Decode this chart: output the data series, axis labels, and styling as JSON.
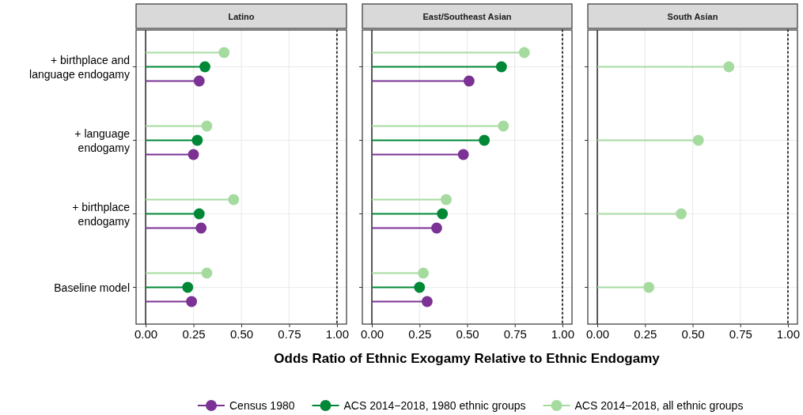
{
  "chart_data": [
    {
      "type": "lollipop",
      "title": "Latino",
      "orientation": "horizontal",
      "categories": [
        "+ birthplace and\nlanguage endogamy",
        "+ language\nendogamy",
        "+ birthplace\nendogamy",
        "Baseline model"
      ],
      "xlim": [
        -0.05,
        1.05
      ],
      "xticks": [
        {
          "value": 0,
          "label": "0.00"
        },
        {
          "value": 0.25,
          "label": "0.25"
        },
        {
          "value": 0.5,
          "label": "0.50"
        },
        {
          "value": 0.75,
          "label": "0.75"
        },
        {
          "value": 1,
          "label": "1.00"
        }
      ],
      "grid": true,
      "marker": "circle",
      "legend": "bottom",
      "ref_lines": [
        {
          "axis": "x",
          "value": 0,
          "color": "#333333",
          "line_style": "solid"
        },
        {
          "axis": "x",
          "value": 1,
          "color": "#333333",
          "line_style": "dotted"
        }
      ],
      "series": [
        {
          "name": "Census 1980",
          "color": "#7b3294",
          "values": [
            0.28,
            0.25,
            0.29,
            0.24
          ]
        },
        {
          "name": "ACS 2014−2018, 1980 ethnic groups",
          "color": "#008837",
          "values": [
            0.31,
            0.27,
            0.28,
            0.22
          ]
        },
        {
          "name": "ACS 2014−2018, all ethnic groups",
          "color": "#a6dba0",
          "values": [
            0.41,
            0.32,
            0.46,
            0.32
          ]
        }
      ]
    },
    {
      "type": "lollipop",
      "title": "East/Southeast Asian",
      "xlabel": "Odds Ratio of Ethnic Exogamy Relative to Ethnic Endogamy",
      "orientation": "horizontal",
      "categories": [
        "+ birthplace and\nlanguage endogamy",
        "+ language\nendogamy",
        "+ birthplace\nendogamy",
        "Baseline model"
      ],
      "xlim": [
        -0.05,
        1.05
      ],
      "xticks": [
        {
          "value": 0,
          "label": "0.00"
        },
        {
          "value": 0.25,
          "label": "0.25"
        },
        {
          "value": 0.5,
          "label": "0.50"
        },
        {
          "value": 0.75,
          "label": "0.75"
        },
        {
          "value": 1,
          "label": "1.00"
        }
      ],
      "grid": true,
      "marker": "circle",
      "tick_labels": "x",
      "ref_lines": [
        {
          "axis": "x",
          "value": 0,
          "color": "#333333",
          "line_style": "solid"
        },
        {
          "axis": "x",
          "value": 1,
          "color": "#333333",
          "line_style": "dotted"
        }
      ],
      "series": [
        {
          "name": "Census 1980",
          "color": "#7b3294",
          "values": [
            0.51,
            0.48,
            0.34,
            0.29
          ]
        },
        {
          "name": "ACS 2014−2018, 1980 ethnic groups",
          "color": "#008837",
          "values": [
            0.68,
            0.59,
            0.37,
            0.25
          ]
        },
        {
          "name": "ACS 2014−2018, all ethnic groups",
          "color": "#a6dba0",
          "values": [
            0.8,
            0.69,
            0.39,
            0.27
          ]
        }
      ]
    },
    {
      "type": "lollipop",
      "title": "South Asian",
      "orientation": "horizontal",
      "categories": [
        "+ birthplace and\nlanguage endogamy",
        "+ language\nendogamy",
        "+ birthplace\nendogamy",
        "Baseline model"
      ],
      "xlim": [
        -0.05,
        1.05
      ],
      "xticks": [
        {
          "value": 0,
          "label": "0.00"
        },
        {
          "value": 0.25,
          "label": "0.25"
        },
        {
          "value": 0.5,
          "label": "0.50"
        },
        {
          "value": 0.75,
          "label": "0.75"
        },
        {
          "value": 1,
          "label": "1.00"
        }
      ],
      "grid": true,
      "marker": "circle",
      "tick_labels": "x",
      "ref_lines": [
        {
          "axis": "x",
          "value": 0,
          "color": "#333333",
          "line_style": "solid"
        },
        {
          "axis": "x",
          "value": 1,
          "color": "#333333",
          "line_style": "dotted"
        }
      ],
      "series": [
        {
          "name": "ACS 2014−2018, all ethnic groups",
          "color": "#a6dba0",
          "values": [
            0.69,
            0.53,
            0.44,
            0.27
          ]
        }
      ]
    }
  ]
}
